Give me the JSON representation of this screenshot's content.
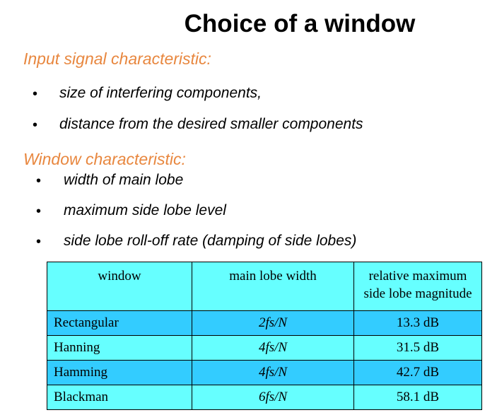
{
  "title": "Choice of a window",
  "input_section": {
    "heading": "Input signal characteristic:",
    "items": [
      "size of interfering components,",
      "distance from the desired smaller components"
    ]
  },
  "window_section": {
    "heading": "Window characteristic:",
    "items": [
      "width of main lobe",
      "maximum side lobe level",
      "side lobe roll-off rate (damping of side lobes)"
    ]
  },
  "table": {
    "headers": [
      "window",
      "main lobe width",
      "relative maximum side lobe magnitude"
    ],
    "rows": [
      {
        "window": "Rectangular",
        "width": "2fs/N",
        "magnitude": "13.3 dB"
      },
      {
        "window": "Hanning",
        "width": "4fs/N",
        "magnitude": "31.5 dB"
      },
      {
        "window": "Hamming",
        "width": "4fs/N",
        "magnitude": "42.7 dB"
      },
      {
        "window": "Blackman",
        "width": "6fs/N",
        "magnitude": "58.1 dB"
      }
    ]
  },
  "colors": {
    "heading": "#e8873f",
    "table_light": "#66ffff",
    "table_dark": "#33ccff"
  }
}
